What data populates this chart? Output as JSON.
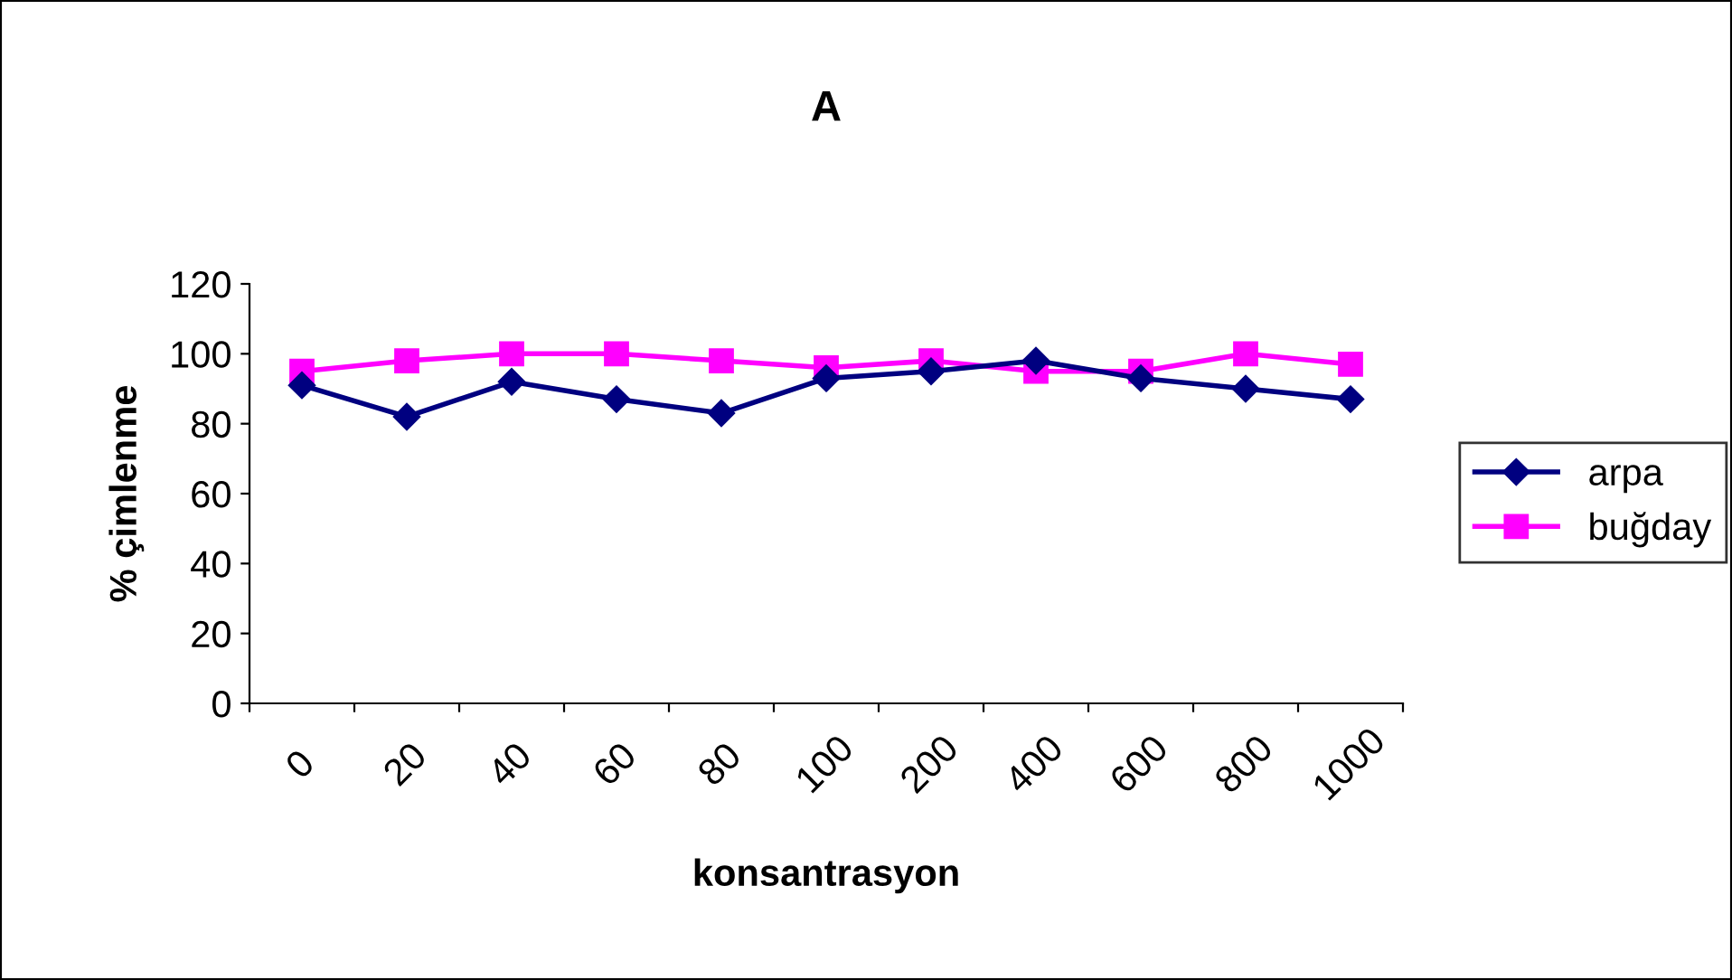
{
  "chart_data": {
    "type": "line",
    "title": "A",
    "xlabel": "konsantrasyon",
    "ylabel": "% çimlenme",
    "categories": [
      "0",
      "20",
      "40",
      "60",
      "80",
      "100",
      "200",
      "400",
      "600",
      "800",
      "1000"
    ],
    "series": [
      {
        "name": "arpa",
        "color": "#000080",
        "marker": "diamond",
        "values": [
          91,
          82,
          92,
          87,
          83,
          93,
          95,
          98,
          93,
          90,
          87
        ]
      },
      {
        "name": "buğday",
        "color": "#ff00ff",
        "marker": "square",
        "values": [
          95,
          98,
          100,
          100,
          98,
          96,
          98,
          95,
          95,
          100,
          97
        ]
      }
    ],
    "ylim": [
      0,
      120
    ],
    "yticks": [
      0,
      20,
      40,
      60,
      80,
      100,
      120
    ],
    "grid": false,
    "legend": "right",
    "line_style": "solid"
  }
}
